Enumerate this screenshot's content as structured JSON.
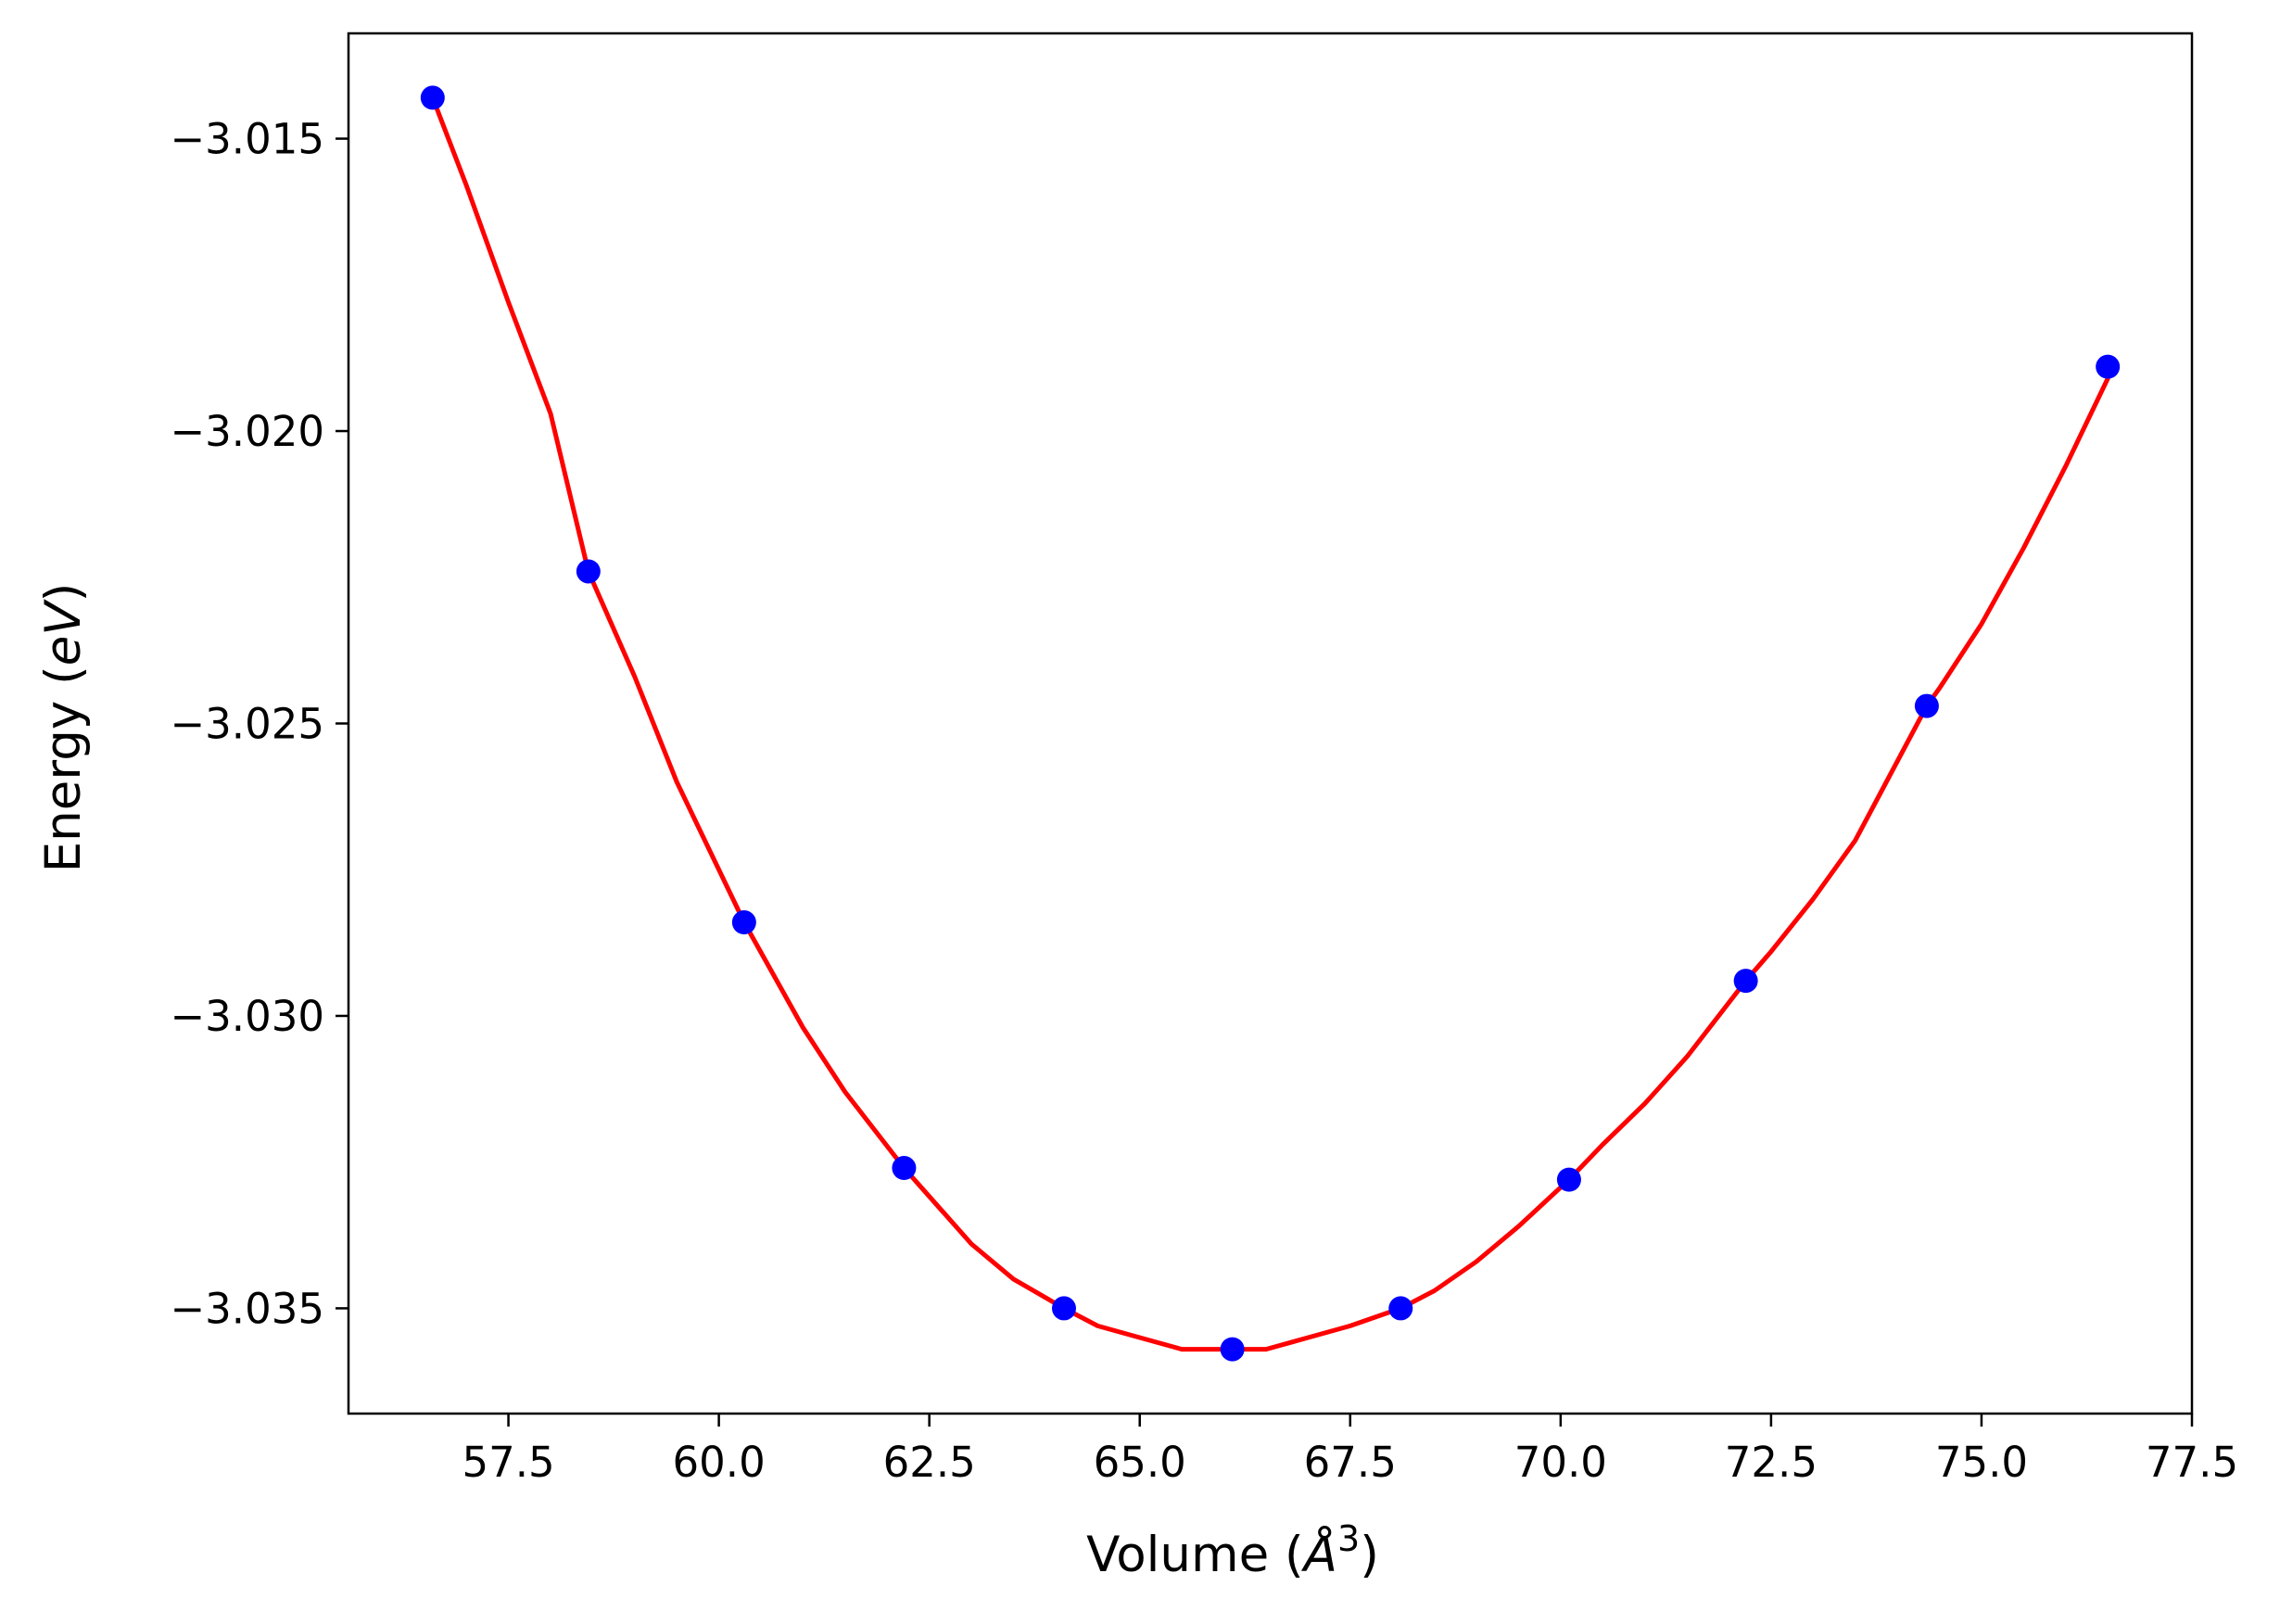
{
  "chart_data": {
    "type": "line",
    "xlabel": {
      "text": "Volume (",
      "math": "Å",
      "sup": "3",
      "tail": ")"
    },
    "ylabel": {
      "text": "Energy (",
      "math": "eV",
      "tail": ")"
    },
    "xlim": [
      55.6,
      77.5
    ],
    "ylim": [
      -3.0368,
      -3.0132
    ],
    "x_ticks": [
      57.5,
      60.0,
      62.5,
      65.0,
      67.5,
      70.0,
      72.5,
      75.0,
      77.5
    ],
    "x_tick_labels": [
      "57.5",
      "60.0",
      "62.5",
      "65.0",
      "67.5",
      "70.0",
      "72.5",
      "75.0",
      "77.5"
    ],
    "y_ticks": [
      -3.015,
      -3.02,
      -3.025,
      -3.03,
      -3.035
    ],
    "y_tick_labels": [
      "−3.015",
      "−3.020",
      "−3.025",
      "−3.030",
      "−3.035"
    ],
    "grid": false,
    "series": [
      {
        "kind": "line",
        "color": "#ff0000",
        "x": [
          56.6,
          57.0,
          57.5,
          58.0,
          58.45,
          59.0,
          59.5,
          60.0,
          60.3,
          61.0,
          61.5,
          62.2,
          63.0,
          63.5,
          64.1,
          64.5,
          65.0,
          65.5,
          66.1,
          66.5,
          67.0,
          67.5,
          68.1,
          68.5,
          69.0,
          69.5,
          70.1,
          70.5,
          71.0,
          71.5,
          72.2,
          72.5,
          73.0,
          73.5,
          74.35,
          74.5,
          75.0,
          75.5,
          76.0,
          76.5
        ],
        "y": [
          -3.0143,
          -3.0158,
          -3.0178,
          -3.0197,
          -3.0224,
          -3.0242,
          -3.026,
          -3.0275,
          -3.0284,
          -3.0302,
          -3.0313,
          -3.0326,
          -3.0339,
          -3.0345,
          -3.035,
          -3.0353,
          -3.0355,
          -3.0357,
          -3.0357,
          -3.0357,
          -3.0355,
          -3.0353,
          -3.035,
          -3.0347,
          -3.0342,
          -3.0336,
          -3.0328,
          -3.0322,
          -3.0315,
          -3.0307,
          -3.0294,
          -3.0289,
          -3.028,
          -3.027,
          -3.0247,
          -3.0244,
          -3.0233,
          -3.022,
          -3.0206,
          -3.0191
        ]
      },
      {
        "kind": "scatter",
        "color": "#0000ff",
        "x": [
          56.6,
          58.45,
          60.3,
          62.2,
          64.1,
          66.1,
          68.1,
          70.1,
          72.2,
          74.35,
          76.5
        ],
        "y": [
          -3.0143,
          -3.0224,
          -3.0284,
          -3.0326,
          -3.035,
          -3.0357,
          -3.035,
          -3.0328,
          -3.0294,
          -3.0247,
          -3.0189
        ]
      }
    ]
  }
}
